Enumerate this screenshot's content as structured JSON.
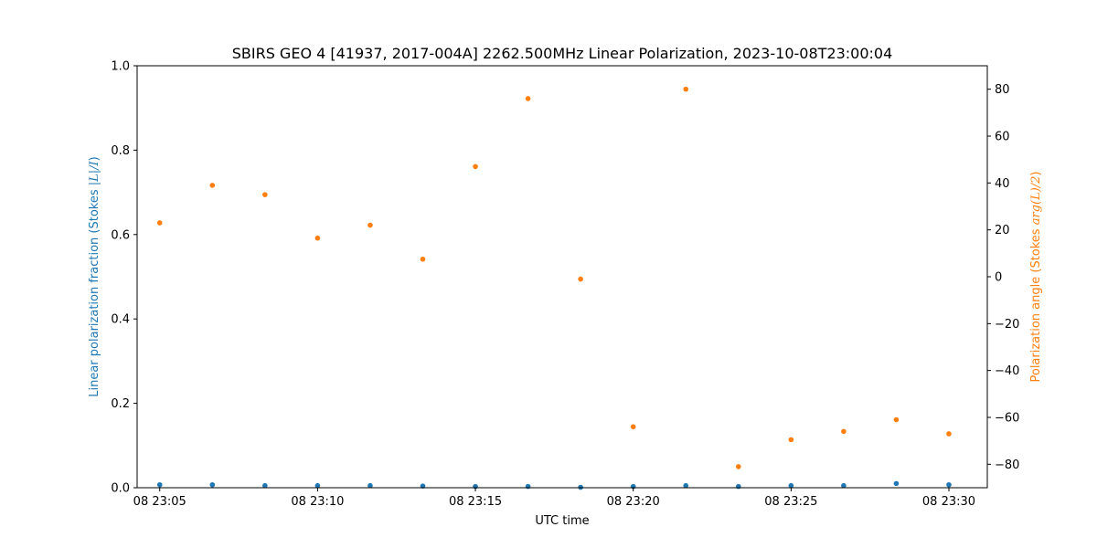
{
  "chart_data": {
    "type": "scatter",
    "title": "SBIRS GEO 4 [41937, 2017-004A] 2262.500MHz Linear Polarization, 2023-10-08T23:00:04",
    "xlabel": "UTC time",
    "ylabel_left": {
      "prefix": "Linear polarization fraction (Stokes ",
      "math": "|L|/I",
      "suffix": ")",
      "color": "#1f77b4"
    },
    "ylabel_right": {
      "prefix": "Polarization angle (Stokes ",
      "math": "arg(L)/2",
      "suffix": ")",
      "color": "#ff7f0e"
    },
    "x_ticks": [
      "08 23:05",
      "08 23:10",
      "08 23:15",
      "08 23:20",
      "08 23:25",
      "08 23:30"
    ],
    "x_tick_values": [
      "23:05:00",
      "23:10:00",
      "23:15:00",
      "23:20:00",
      "23:25:00",
      "23:30:00"
    ],
    "x_range": [
      "23:04:17",
      "23:31:13"
    ],
    "ylim_left": [
      0,
      1
    ],
    "yticks_left": [
      "0.0",
      "0.2",
      "0.4",
      "0.6",
      "0.8",
      "1.0"
    ],
    "ylim_right": [
      -90,
      90
    ],
    "yticks_right": [
      "80",
      "60",
      "40",
      "20",
      "0",
      "−20",
      "−40",
      "−60",
      "−80"
    ],
    "ytick_values_right": [
      80,
      60,
      40,
      20,
      0,
      -20,
      -40,
      -60,
      -80
    ],
    "grid": false,
    "series": [
      {
        "color": "#1f77b4",
        "axis": "left",
        "x": [
          "23:05:00",
          "23:06:40",
          "23:08:20",
          "23:10:00",
          "23:11:40",
          "23:13:20",
          "23:15:00",
          "23:16:40",
          "23:18:20",
          "23:20:00",
          "23:21:40",
          "23:23:20",
          "23:25:00",
          "23:26:40",
          "23:28:20",
          "23:30:00"
        ],
        "y": [
          0.007,
          0.007,
          0.005,
          0.005,
          0.005,
          0.004,
          0.003,
          0.003,
          0.001,
          0.003,
          0.005,
          0.003,
          0.005,
          0.005,
          0.01,
          0.007
        ]
      },
      {
        "color": "#ff7f0e",
        "axis": "right",
        "x": [
          "23:05:00",
          "23:06:40",
          "23:08:20",
          "23:10:00",
          "23:11:40",
          "23:13:20",
          "23:15:00",
          "23:16:40",
          "23:18:20",
          "23:20:00",
          "23:21:40",
          "23:23:20",
          "23:25:00",
          "23:26:40",
          "23:28:20",
          "23:30:00"
        ],
        "y": [
          23,
          39,
          35,
          16.5,
          22,
          7.5,
          47,
          76,
          -1,
          -64,
          80,
          -81,
          -69.5,
          -66,
          -61,
          -67
        ]
      }
    ]
  }
}
